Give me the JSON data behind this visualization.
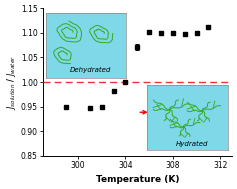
{
  "x_data": [
    299,
    301,
    302,
    303,
    304,
    305,
    306,
    307,
    308,
    309,
    310,
    311
  ],
  "y_data": [
    0.95,
    0.948,
    0.95,
    0.982,
    1.0,
    1.072,
    1.101,
    1.1,
    1.099,
    1.098,
    1.1,
    1.112
  ],
  "y_err": [
    0.003,
    0.003,
    0.003,
    0.004,
    0.004,
    0.006,
    0.004,
    0.004,
    0.004,
    0.004,
    0.004,
    0.004
  ],
  "xlim": [
    297,
    313
  ],
  "ylim": [
    0.85,
    1.15
  ],
  "xticks": [
    300,
    304,
    308,
    312
  ],
  "yticks": [
    0.85,
    0.9,
    0.95,
    1.0,
    1.05,
    1.1,
    1.15
  ],
  "xlabel": "Temperature (K)",
  "ylabel_line1": "J",
  "ylabel_sub1": "solution",
  "ylabel_line2": "J",
  "ylabel_sub2": "water",
  "hline_y": 1.0,
  "hline_color": "#EE3333",
  "marker_color": "black",
  "bg_color": "#ffffff",
  "plot_bg": "#ffffff",
  "inset_bg": "#7FD8E8",
  "dehydrated_label": "Dehydrated",
  "hydrated_label": "Hydrated",
  "green_color": "#33AA22"
}
